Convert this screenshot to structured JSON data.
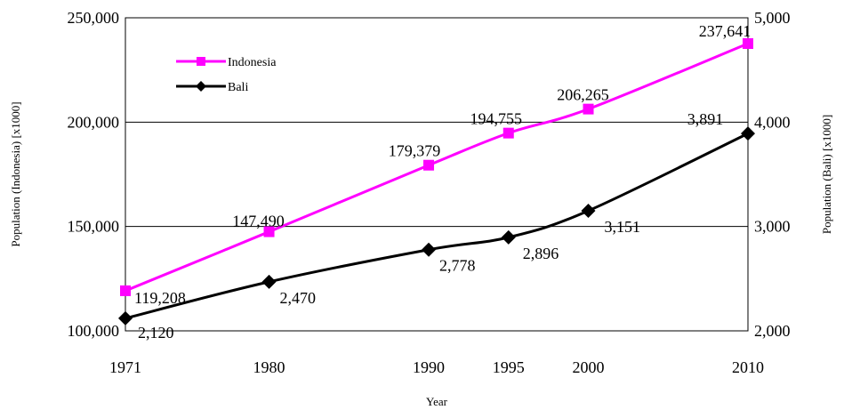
{
  "chart_data": {
    "type": "line",
    "x": [
      1971,
      1980,
      1990,
      1995,
      2000,
      2010
    ],
    "xlabel": "Year",
    "x_tick_labels": [
      "1971",
      "1980",
      "1990",
      "1995",
      "2000",
      "2010"
    ],
    "xlim": [
      1971,
      2010
    ],
    "ylabel_left": "Population (Indonesia) [x1000]",
    "ylabel_right": "Population (Bali) [x1000]",
    "ylim_left": [
      100000,
      250000
    ],
    "ylim_right": [
      2000,
      5000
    ],
    "y_ticks_left": [
      100000,
      150000,
      200000,
      250000
    ],
    "y_tick_labels_left": [
      "100,000",
      "150,000",
      "200,000",
      "250,000"
    ],
    "y_ticks_right": [
      2000,
      3000,
      4000,
      5000
    ],
    "y_tick_labels_right": [
      "2,000",
      "3,000",
      "4,000",
      "5,000"
    ],
    "gridlines": "horizontal",
    "legend_position": "top-left",
    "series": [
      {
        "name": "Indonesia",
        "axis": "left",
        "color": "#ff00ff",
        "marker": "square",
        "values": [
          119208,
          147490,
          179379,
          194755,
          206265,
          237641
        ],
        "labels": [
          "119,208",
          "147,490",
          "179,379",
          "194,755",
          "206,265",
          "237,641"
        ]
      },
      {
        "name": "Bali",
        "axis": "right",
        "color": "#000000",
        "marker": "diamond",
        "values": [
          2120,
          2470,
          2778,
          2896,
          3151,
          3891
        ],
        "labels": [
          "2,120",
          "2,470",
          "2,778",
          "2,896",
          "3,151",
          "3,891"
        ]
      }
    ]
  }
}
